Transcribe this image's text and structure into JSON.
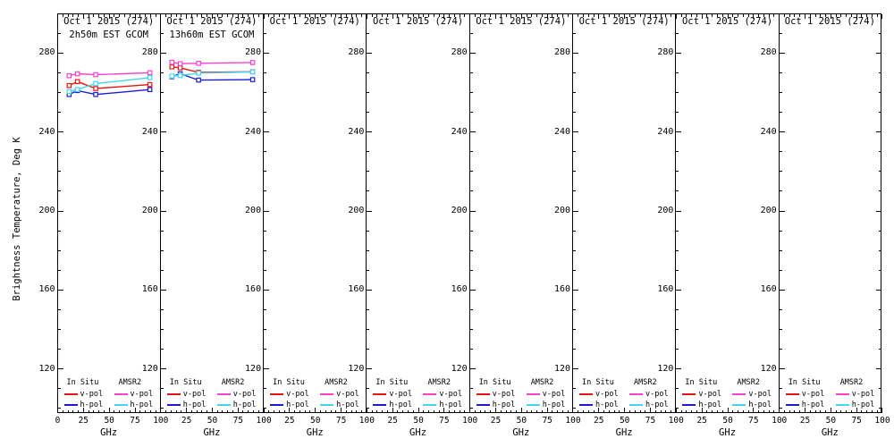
{
  "figure": {
    "y_axis": {
      "label": "Brightness Temperature, Deg K",
      "ticks": [
        280,
        240,
        200,
        160,
        120
      ],
      "minor_step": 10,
      "range": [
        97,
        300
      ]
    },
    "x_axis": {
      "label": "GHz",
      "ticks": [
        0,
        25,
        50,
        75,
        100
      ],
      "minor_step": 5,
      "range": [
        0,
        100
      ]
    },
    "legend": {
      "col1_title": "In Situ",
      "col2_title": "AMSR2",
      "row1_label": "v-pol",
      "row2_label": "h-pol"
    },
    "colors": {
      "insitu_v": "#e81414",
      "insitu_h": "#1c1ccc",
      "amsr2_v": "#fa41d1",
      "amsr2_h": "#44d8f0",
      "axis": "#000000",
      "background": "#ffffff"
    }
  },
  "chart_data": {
    "type": "line",
    "x_frequencies_ghz": [
      10.65,
      18.7,
      36.5,
      89
    ],
    "xlabel": "GHz",
    "ylabel": "Brightness Temperature, Deg K",
    "xlim": [
      0,
      100
    ],
    "ylim": [
      97,
      300
    ],
    "panels": [
      {
        "title": "Oct 1 2015 (274)",
        "subtitle": "2h50m EST GCOM",
        "series": [
          {
            "key": "insitu_v",
            "name": "In Situ v-pol",
            "values": [
              263.5,
              265.5,
              262.0,
              264.0
            ]
          },
          {
            "key": "insitu_h",
            "name": "In Situ h-pol",
            "values": [
              259.0,
              261.0,
              259.0,
              261.5
            ]
          },
          {
            "key": "amsr2_v",
            "name": "AMSR2 v-pol",
            "values": [
              268.5,
              269.5,
              269.0,
              270.0
            ]
          },
          {
            "key": "amsr2_h",
            "name": "AMSR2 h-pol",
            "values": [
              260.5,
              261.5,
              264.5,
              267.5
            ]
          }
        ]
      },
      {
        "title": "Oct 1 2015 (274)",
        "subtitle": "13h60m EST GCOM",
        "series": [
          {
            "key": "insitu_v",
            "name": "In Situ v-pol",
            "values": [
              273.0,
              272.5,
              270.2,
              270.5
            ]
          },
          {
            "key": "insitu_h",
            "name": "In Situ h-pol",
            "values": [
              268.0,
              269.5,
              266.3,
              266.5
            ]
          },
          {
            "key": "amsr2_v",
            "name": "AMSR2 v-pol",
            "values": [
              275.3,
              274.6,
              274.8,
              275.2
            ]
          },
          {
            "key": "amsr2_h",
            "name": "AMSR2 h-pol",
            "values": [
              268.3,
              268.6,
              269.8,
              270.4
            ]
          }
        ]
      },
      {
        "title": "Oct 1 2015 (274)",
        "subtitle": "",
        "series": []
      },
      {
        "title": "Oct 1 2015 (274)",
        "subtitle": "",
        "series": []
      },
      {
        "title": "Oct 1 2015 (274)",
        "subtitle": "",
        "series": []
      },
      {
        "title": "Oct 1 2015 (274)",
        "subtitle": "",
        "series": []
      },
      {
        "title": "Oct 1 2015 (274)",
        "subtitle": "",
        "series": []
      },
      {
        "title": "Oct 1 2015 (274)",
        "subtitle": "",
        "series": []
      }
    ]
  }
}
